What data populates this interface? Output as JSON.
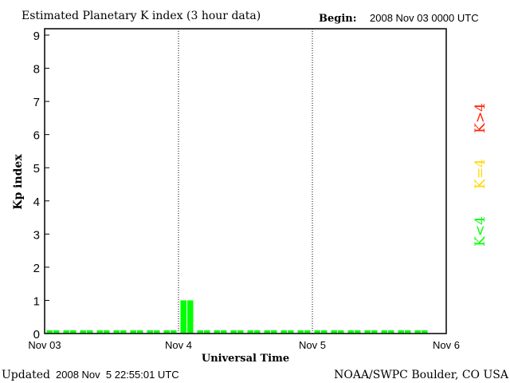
{
  "chart_data": {
    "type": "bar",
    "title": "Estimated Planetary K index (3 hour data)",
    "begin_label": "Begin:",
    "begin_value": "2008 Nov 03 0000 UTC",
    "xlabel": "Universal Time",
    "ylabel": "Kp index",
    "ylim": [
      0,
      9
    ],
    "yticks": [
      "0",
      "1",
      "2",
      "3",
      "4",
      "5",
      "6",
      "7",
      "8",
      "9"
    ],
    "xticks": [
      "Nov 03",
      "Nov 4",
      "Nov 5",
      "Nov 6"
    ],
    "interval_hours": 3,
    "values": [
      0,
      0,
      0,
      0,
      0,
      0,
      0,
      0,
      1,
      0,
      0,
      0,
      0,
      0,
      0,
      0,
      0,
      0,
      0,
      0,
      0,
      0,
      0
    ],
    "legend": [
      {
        "label": "K<4",
        "color": "#00ff00"
      },
      {
        "label": "K=4",
        "color": "#ffd700"
      },
      {
        "label": "K>4",
        "color": "#ff2000"
      }
    ],
    "grid": "vertical dotted at day boundaries",
    "updated_label": "Updated",
    "updated_value": "2008 Nov  5 22:55:01 UTC",
    "credit": "NOAA/SWPC Boulder, CO USA"
  }
}
